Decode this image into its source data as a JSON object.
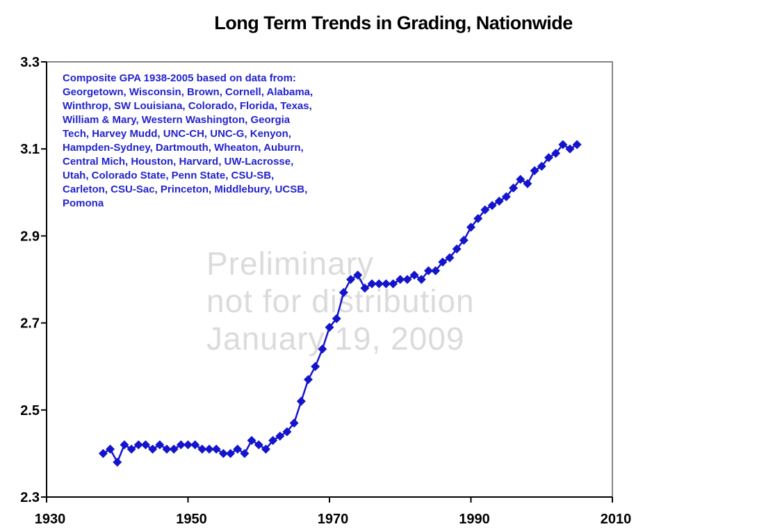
{
  "page": {
    "title": "Long Term Trends in Grading, Nationwide"
  },
  "annotation": {
    "text": "Composite GPA 1938-2005 based on data from:\nGeorgetown, Wisconsin, Brown, Cornell, Alabama,\nWinthrop, SW Louisiana, Colorado, Florida, Texas,\nWilliam & Mary, Western Washington, Georgia\nTech, Harvey Mudd, UNC-CH, UNC-G, Kenyon,\nHampden-Sydney, Dartmouth, Wheaton, Auburn,\nCentral Mich, Houston, Harvard, UW-Lacrosse,\nUtah, Colorado State, Penn State, CSU-SB,\nCarleton, CSU-Sac, Princeton, Middlebury, UCSB,\nPomona"
  },
  "watermark": {
    "text": "Preliminary\nnot for distribution\nJanuary 19, 2009"
  },
  "colors": {
    "series": "#1414cc",
    "annotation_text": "#2323cc",
    "watermark_text": "#dbdbdb",
    "axis_line": "#000000",
    "plot_border": "#848484",
    "tick_label": "#000000"
  },
  "chart_data": {
    "type": "line",
    "title": "Long Term Trends in Grading, Nationwide",
    "xlabel": "",
    "ylabel": "",
    "xlim": [
      1930,
      2010
    ],
    "ylim": [
      2.3,
      3.3
    ],
    "x_ticks": [
      1930,
      1950,
      1970,
      1990,
      2010
    ],
    "y_ticks": [
      2.3,
      2.5,
      2.7,
      2.9,
      3.1,
      3.3
    ],
    "grid": false,
    "legend": false,
    "marker": "diamond",
    "x": [
      1938,
      1939,
      1940,
      1941,
      1942,
      1943,
      1944,
      1945,
      1946,
      1947,
      1948,
      1949,
      1950,
      1951,
      1952,
      1953,
      1954,
      1955,
      1956,
      1957,
      1958,
      1959,
      1960,
      1961,
      1962,
      1963,
      1964,
      1965,
      1966,
      1967,
      1968,
      1969,
      1970,
      1971,
      1972,
      1973,
      1974,
      1975,
      1976,
      1977,
      1978,
      1979,
      1980,
      1981,
      1982,
      1983,
      1984,
      1985,
      1986,
      1987,
      1988,
      1989,
      1990,
      1991,
      1992,
      1993,
      1994,
      1995,
      1996,
      1997,
      1998,
      1999,
      2000,
      2001,
      2002,
      2003,
      2004,
      2005
    ],
    "series": [
      {
        "name": "Composite GPA",
        "values": [
          2.4,
          2.41,
          2.38,
          2.42,
          2.41,
          2.42,
          2.42,
          2.41,
          2.42,
          2.41,
          2.41,
          2.42,
          2.42,
          2.42,
          2.41,
          2.41,
          2.41,
          2.4,
          2.4,
          2.41,
          2.4,
          2.43,
          2.42,
          2.41,
          2.43,
          2.44,
          2.45,
          2.47,
          2.52,
          2.57,
          2.6,
          2.64,
          2.69,
          2.71,
          2.77,
          2.8,
          2.81,
          2.78,
          2.79,
          2.79,
          2.79,
          2.79,
          2.8,
          2.8,
          2.81,
          2.8,
          2.82,
          2.82,
          2.84,
          2.85,
          2.87,
          2.89,
          2.92,
          2.94,
          2.96,
          2.97,
          2.98,
          2.99,
          3.01,
          3.03,
          3.02,
          3.05,
          3.06,
          3.08,
          3.09,
          3.11,
          3.1,
          3.11
        ]
      }
    ]
  }
}
